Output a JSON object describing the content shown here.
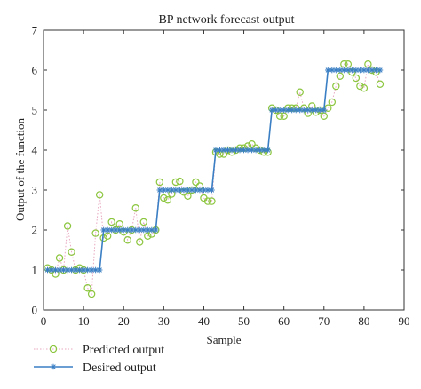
{
  "chart_data": {
    "type": "line",
    "title": "BP network forecast output",
    "xlabel": "Sample",
    "ylabel": "Output of the function",
    "xlim": [
      0,
      90
    ],
    "ylim": [
      0,
      7
    ],
    "xticks": [
      "0",
      "10",
      "20",
      "30",
      "40",
      "50",
      "60",
      "70",
      "80",
      "90"
    ],
    "yticks": [
      "0",
      "1",
      "2",
      "3",
      "4",
      "5",
      "6",
      "7"
    ],
    "grid": false,
    "legend_position": "bottom-left-outside",
    "series": [
      {
        "name": "Predicted output",
        "style": "dotted-circles",
        "color": "#8cc63f",
        "x": [
          1,
          2,
          3,
          4,
          5,
          6,
          7,
          8,
          9,
          10,
          11,
          12,
          13,
          14,
          15,
          16,
          17,
          18,
          19,
          20,
          21,
          22,
          23,
          24,
          25,
          26,
          27,
          28,
          29,
          30,
          31,
          32,
          33,
          34,
          35,
          36,
          37,
          38,
          39,
          40,
          41,
          42,
          43,
          44,
          45,
          46,
          47,
          48,
          49,
          50,
          51,
          52,
          53,
          54,
          55,
          56,
          57,
          58,
          59,
          60,
          61,
          62,
          63,
          64,
          65,
          66,
          67,
          68,
          69,
          70,
          71,
          72,
          73,
          74,
          75,
          76,
          77,
          78,
          79,
          80,
          81,
          82,
          83,
          84
        ],
        "y": [
          1.05,
          1.0,
          0.9,
          1.3,
          1.0,
          2.1,
          1.45,
          1.0,
          1.05,
          1.0,
          0.55,
          0.4,
          1.92,
          2.88,
          1.8,
          1.85,
          2.2,
          2.0,
          2.15,
          1.95,
          1.75,
          2.0,
          2.55,
          1.7,
          2.2,
          1.85,
          1.9,
          2.0,
          3.2,
          2.8,
          2.75,
          2.9,
          3.2,
          3.22,
          2.95,
          2.85,
          3.0,
          3.2,
          3.1,
          2.8,
          2.72,
          2.72,
          3.95,
          3.9,
          3.9,
          4.0,
          3.95,
          4.0,
          4.05,
          4.05,
          4.1,
          4.15,
          4.05,
          4.0,
          3.95,
          3.95,
          5.05,
          5.0,
          4.85,
          4.85,
          5.05,
          5.05,
          5.05,
          5.45,
          5.05,
          4.92,
          5.1,
          4.95,
          5.0,
          4.85,
          5.05,
          5.2,
          5.6,
          5.85,
          6.15,
          6.15,
          5.95,
          5.8,
          5.6,
          5.55,
          6.15,
          6.0,
          5.95,
          5.65
        ]
      },
      {
        "name": "Desired output",
        "style": "solid-asterisks",
        "color": "#3a7fc4",
        "x": [
          1,
          2,
          3,
          4,
          5,
          6,
          7,
          8,
          9,
          10,
          11,
          12,
          13,
          14,
          15,
          16,
          17,
          18,
          19,
          20,
          21,
          22,
          23,
          24,
          25,
          26,
          27,
          28,
          29,
          30,
          31,
          32,
          33,
          34,
          35,
          36,
          37,
          38,
          39,
          40,
          41,
          42,
          43,
          44,
          45,
          46,
          47,
          48,
          49,
          50,
          51,
          52,
          53,
          54,
          55,
          56,
          57,
          58,
          59,
          60,
          61,
          62,
          63,
          64,
          65,
          66,
          67,
          68,
          69,
          70,
          71,
          72,
          73,
          74,
          75,
          76,
          77,
          78,
          79,
          80,
          81,
          82,
          83,
          84
        ],
        "y": [
          1,
          1,
          1,
          1,
          1,
          1,
          1,
          1,
          1,
          1,
          1,
          1,
          1,
          1,
          2,
          2,
          2,
          2,
          2,
          2,
          2,
          2,
          2,
          2,
          2,
          2,
          2,
          2,
          3,
          3,
          3,
          3,
          3,
          3,
          3,
          3,
          3,
          3,
          3,
          3,
          3,
          3,
          4,
          4,
          4,
          4,
          4,
          4,
          4,
          4,
          4,
          4,
          4,
          4,
          4,
          4,
          5,
          5,
          5,
          5,
          5,
          5,
          5,
          5,
          5,
          5,
          5,
          5,
          5,
          5,
          6,
          6,
          6,
          6,
          6,
          6,
          6,
          6,
          6,
          6,
          6,
          6,
          6,
          6
        ]
      }
    ]
  }
}
